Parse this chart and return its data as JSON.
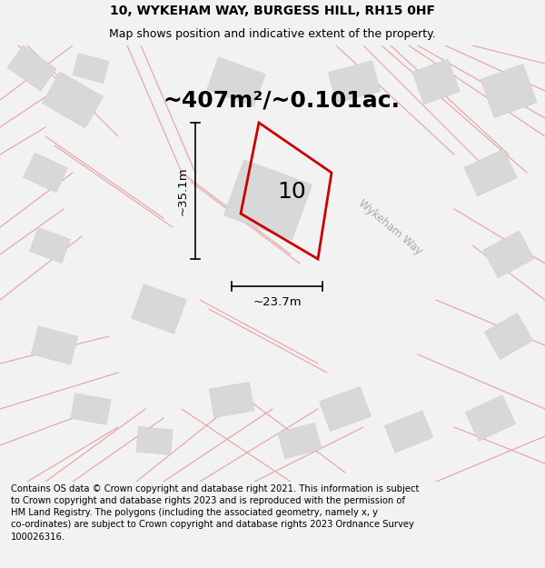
{
  "title": "10, WYKEHAM WAY, BURGESS HILL, RH15 0HF",
  "subtitle": "Map shows position and indicative extent of the property.",
  "area_text": "~407m²/~0.101ac.",
  "width_label": "~23.7m",
  "height_label": "~35.1m",
  "plot_number": "10",
  "road_label": "Wykeham Way",
  "footer": "Contains OS data © Crown copyright and database right 2021. This information is subject to Crown copyright and database rights 2023 and is reproduced with the permission of HM Land Registry. The polygons (including the associated geometry, namely x, y co-ordinates) are subject to Crown copyright and database rights 2023 Ordnance Survey 100026316.",
  "bg_color": "#f2f2f2",
  "map_bg": "#ffffff",
  "road_color": "#e8a0a0",
  "building_color": "#d8d8d8",
  "building_edge": "#cccccc",
  "red_plot_color": "#cc0000",
  "dim_color": "#000000",
  "road_label_color": "#aaaaaa",
  "title_fontsize": 10,
  "subtitle_fontsize": 9,
  "area_fontsize": 18
}
